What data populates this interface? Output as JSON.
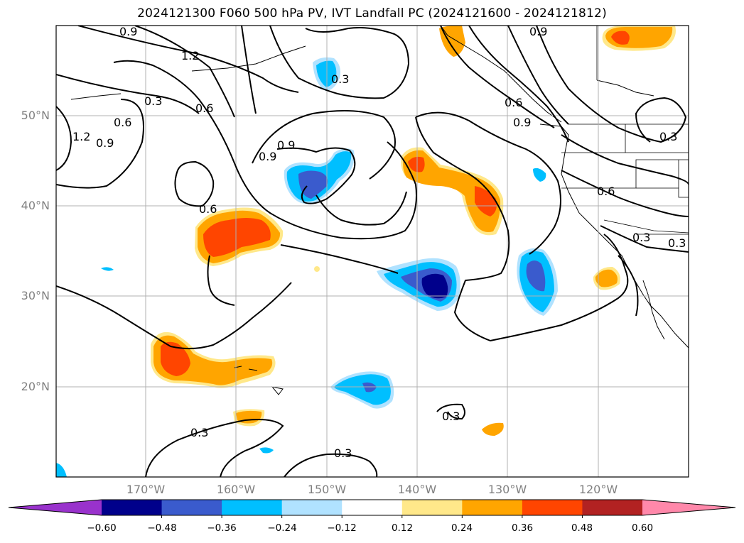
{
  "chart_data": {
    "type": "heatmap",
    "title": "2024121300 F060 500 hPa PV, IVT Landfall PC (2024121600 - 2024121812)",
    "xlabel": "",
    "ylabel": "",
    "xlim": [
      -180,
      -110
    ],
    "ylim": [
      10,
      60
    ],
    "grid": true,
    "lat_ticks": [
      "20°N",
      "30°N",
      "40°N",
      "50°N"
    ],
    "lon_ticks": [
      "170°W",
      "160°W",
      "150°W",
      "140°W",
      "130°W",
      "120°W"
    ],
    "colorbar": {
      "orientation": "horizontal",
      "extend": "both",
      "levels": [
        -0.6,
        -0.48,
        -0.36,
        -0.24,
        -0.12,
        0.12,
        0.24,
        0.36,
        0.48,
        0.6
      ],
      "tick_labels": [
        "−0.60",
        "−0.48",
        "−0.36",
        "−0.24",
        "−0.12",
        "0.12",
        "0.24",
        "0.36",
        "0.48",
        "0.60"
      ],
      "colors": [
        "#9932cc",
        "#00008b",
        "#3a5bcd",
        "#00bfff",
        "#b0e2ff",
        "#ffffff",
        "#ffe88a",
        "#ffa500",
        "#ff4500",
        "#b22222",
        "#ff88aa"
      ]
    },
    "contour_labels": [
      "0.9",
      "1.2",
      "0.3",
      "0.6",
      "0.6",
      "1.2",
      "0.9",
      "0.9",
      "0.6",
      "0.3",
      "0.3",
      "0.9",
      "0.6",
      "0.3",
      "0.9",
      "0.6",
      "0.3",
      "0.3",
      "0.3",
      "0.3",
      "0.9"
    ]
  }
}
